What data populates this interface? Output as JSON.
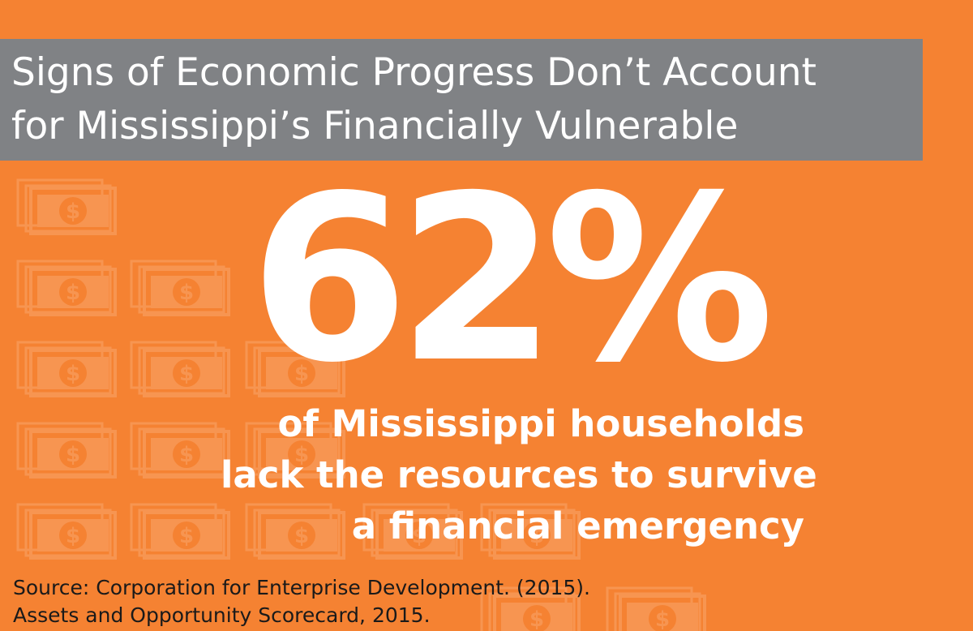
{
  "title": {
    "line1": "Signs of Economic Progress Don’t Account",
    "line2": "for Mississippi’s Financially Vulnerable"
  },
  "stat": {
    "value": "62%",
    "caption_lines": [
      "of Mississippi households",
      "lack the resources to survive",
      "a financial emergency"
    ]
  },
  "source": {
    "line1": "Source: Corporation for Enterprise Development. (2015).",
    "line2": "Assets and Opportunity Scorecard, 2015."
  },
  "colors": {
    "background": "#F58232",
    "title_band": "#808285",
    "bill_icon": "#F9A56B",
    "text_light": "#FFFFFF",
    "text_dark": "#1A1A1A"
  },
  "icons": {
    "bill": "dollar-bill-stack-icon",
    "bill_symbol": "$"
  }
}
